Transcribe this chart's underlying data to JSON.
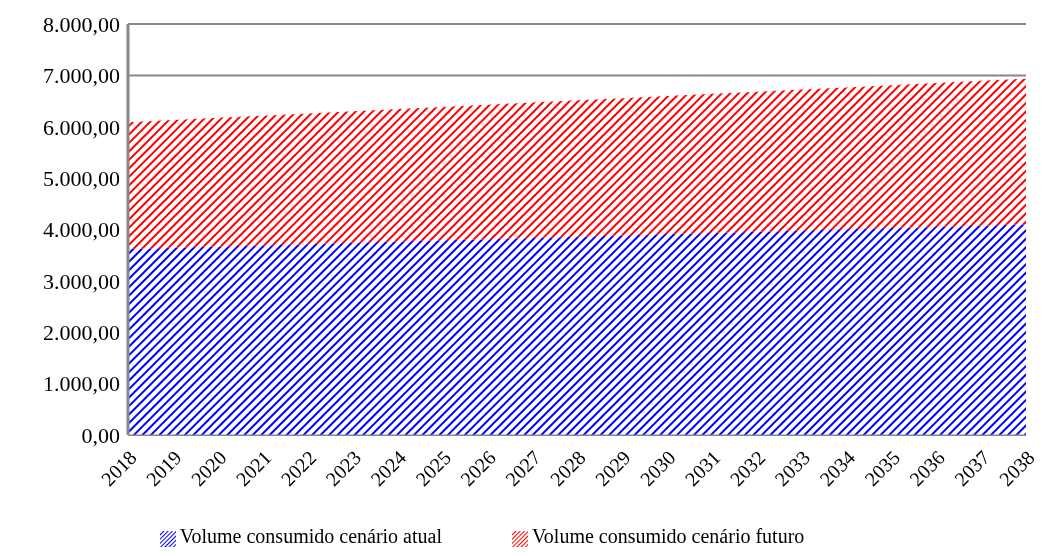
{
  "chart_data": {
    "type": "area",
    "stacked": true,
    "categories": [
      "2018",
      "2019",
      "2020",
      "2021",
      "2022",
      "2023",
      "2024",
      "2025",
      "2026",
      "2027",
      "2028",
      "2029",
      "2030",
      "2031",
      "2032",
      "2033",
      "2034",
      "2035",
      "2036",
      "2037",
      "2038"
    ],
    "series": [
      {
        "name": "Volume consumido cenário atual",
        "color": "#0000ff",
        "values": [
          3620,
          3645,
          3670,
          3690,
          3715,
          3740,
          3765,
          3790,
          3810,
          3835,
          3860,
          3885,
          3910,
          3930,
          3955,
          3980,
          4005,
          4030,
          4050,
          4075,
          4100
        ]
      },
      {
        "name": "Volume consumido cenário futuro",
        "color": "#ff0000",
        "values": [
          2470,
          2485,
          2505,
          2525,
          2545,
          2560,
          2580,
          2595,
          2620,
          2635,
          2655,
          2670,
          2690,
          2710,
          2725,
          2745,
          2760,
          2780,
          2800,
          2820,
          2835
        ]
      }
    ],
    "ylim": [
      0,
      8000
    ],
    "yticks": [
      {
        "value": 0,
        "label": "0,00"
      },
      {
        "value": 1000,
        "label": "1.000,00"
      },
      {
        "value": 2000,
        "label": "2.000,00"
      },
      {
        "value": 3000,
        "label": "3.000,00"
      },
      {
        "value": 4000,
        "label": "4.000,00"
      },
      {
        "value": 5000,
        "label": "5.000,00"
      },
      {
        "value": 6000,
        "label": "6.000,00"
      },
      {
        "value": 7000,
        "label": "7.000,00"
      },
      {
        "value": 8000,
        "label": "8.000,00"
      }
    ],
    "grid": "y",
    "legend": "bottom"
  }
}
